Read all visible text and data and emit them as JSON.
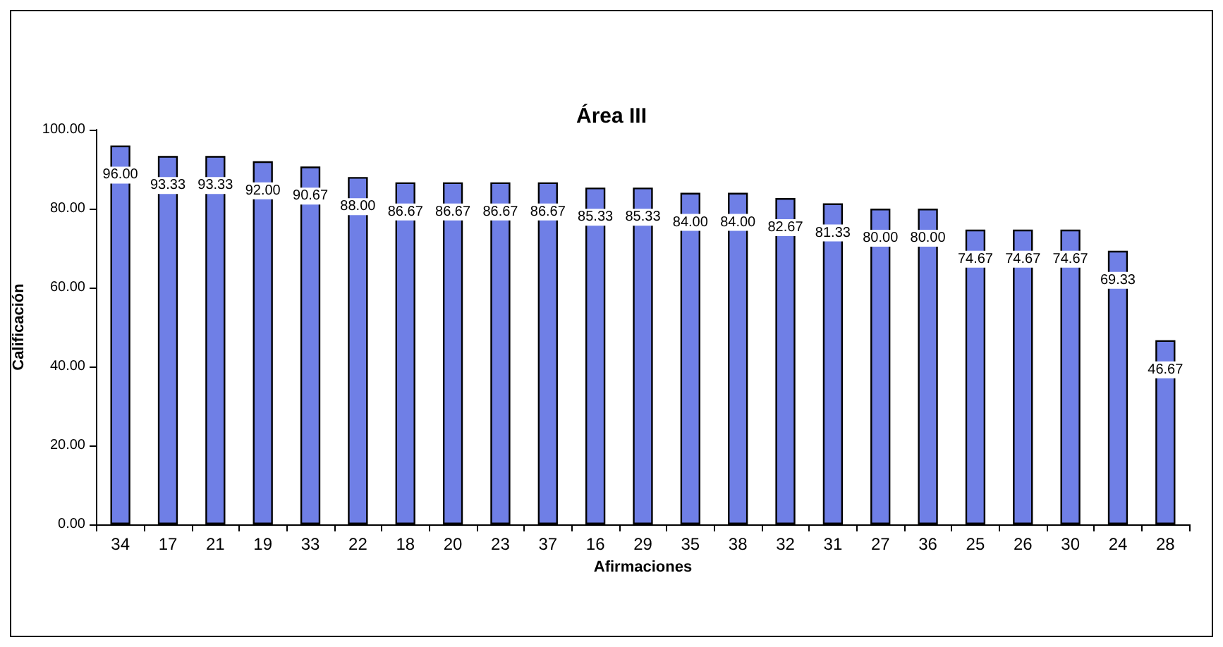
{
  "chart_data": {
    "type": "bar",
    "title": "Área III",
    "xlabel": "Afirmaciones",
    "ylabel": "Calificación",
    "categories": [
      "34",
      "17",
      "21",
      "19",
      "33",
      "22",
      "18",
      "20",
      "23",
      "37",
      "16",
      "29",
      "35",
      "38",
      "32",
      "31",
      "27",
      "36",
      "25",
      "26",
      "30",
      "24",
      "28"
    ],
    "values": [
      96.0,
      93.33,
      93.33,
      92.0,
      90.67,
      88.0,
      86.67,
      86.67,
      86.67,
      86.67,
      85.33,
      85.33,
      84.0,
      84.0,
      82.67,
      81.33,
      80.0,
      80.0,
      74.67,
      74.67,
      74.67,
      69.33,
      46.67
    ],
    "value_labels": [
      "96.00",
      "93.33",
      "93.33",
      "92.00",
      "90.67",
      "88.00",
      "86.67",
      "86.67",
      "86.67",
      "86.67",
      "85.33",
      "85.33",
      "84.00",
      "84.00",
      "82.67",
      "81.33",
      "80.00",
      "80.00",
      "74.67",
      "74.67",
      "74.67",
      "69.33",
      "46.67"
    ],
    "color": "#6f7fe6",
    "ylim": [
      0,
      100
    ],
    "yticks": [
      {
        "value": 0,
        "label": "0.00"
      },
      {
        "value": 20,
        "label": "20.00"
      },
      {
        "value": 40,
        "label": "40.00"
      },
      {
        "value": 60,
        "label": "60.00"
      },
      {
        "value": 80,
        "label": "80.00"
      },
      {
        "value": 100,
        "label": "100.00"
      }
    ],
    "grid": false
  }
}
